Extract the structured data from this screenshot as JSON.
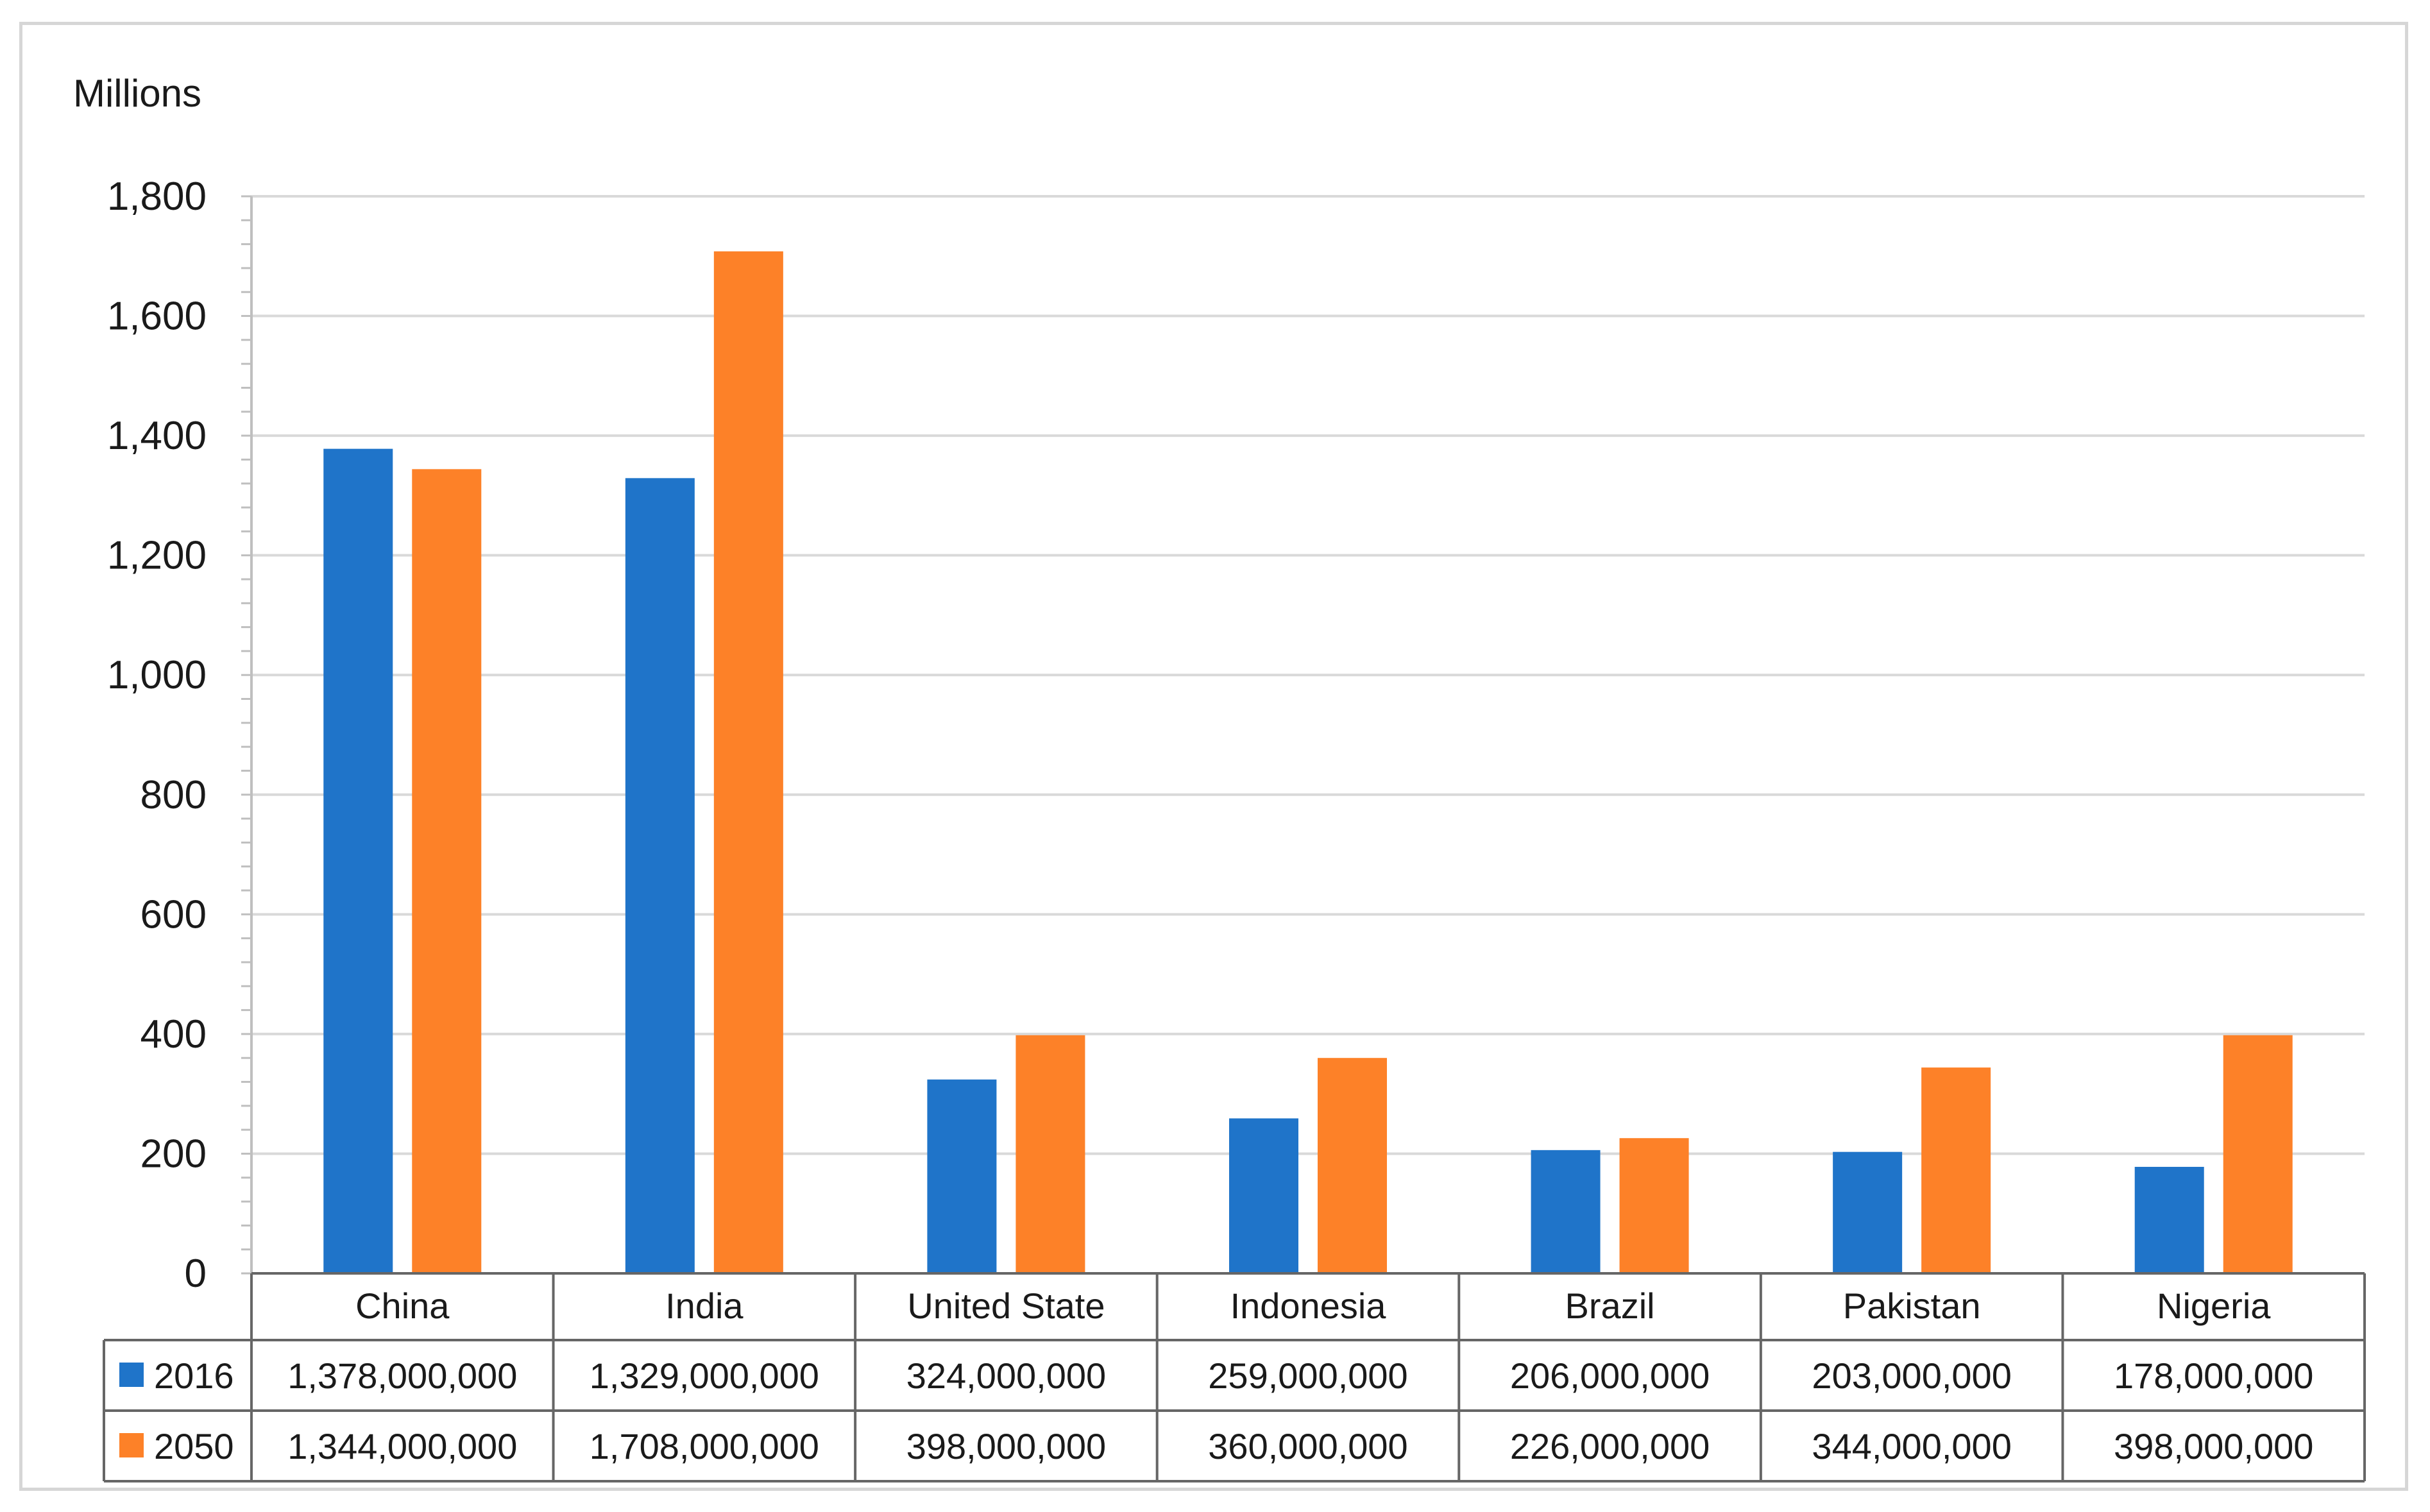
{
  "chart_data": {
    "type": "bar",
    "title": "",
    "ylabel": "Millions",
    "xlabel": "",
    "ylim": [
      0,
      1800
    ],
    "ytick_step": 200,
    "yticks": [
      "0",
      "200",
      "400",
      "600",
      "800",
      "1,000",
      "1,200",
      "1,400",
      "1,600",
      "1,800"
    ],
    "grid": true,
    "categories": [
      "China",
      "India",
      "United State",
      "Indonesia",
      "Brazil",
      "Pakistan",
      "Nigeria"
    ],
    "series": [
      {
        "name": "2016",
        "color": "#1f74c9",
        "values": [
          1378,
          1329,
          324,
          259,
          206,
          203,
          178
        ],
        "table_values": [
          "1,378,000,000",
          "1,329,000,000",
          "324,000,000",
          "259,000,000",
          "206,000,000",
          "203,000,000",
          "178,000,000"
        ]
      },
      {
        "name": "2050",
        "color": "#fd8128",
        "values": [
          1344,
          1708,
          398,
          360,
          226,
          344,
          398
        ],
        "table_values": [
          "1,344,000,000",
          "1,708,000,000",
          "398,000,000",
          "360,000,000",
          "226,000,000",
          "344,000,000",
          "398,000,000"
        ]
      }
    ],
    "legend_placement": "data-table-left"
  }
}
